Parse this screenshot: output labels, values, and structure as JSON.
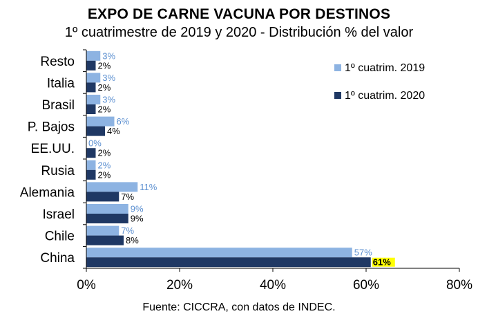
{
  "chart_data": {
    "type": "bar",
    "orientation": "horizontal",
    "title": "EXPO DE CARNE VACUNA POR DESTINOS",
    "subtitle": "1º cuatrimestre de 2019 y 2020 - Distribución % del valor",
    "source": "Fuente: CICCRA, con datos de INDEC.",
    "categories": [
      "Resto",
      "Italia",
      "Brasil",
      "P. Bajos",
      "EE.UU.",
      "Rusia",
      "Alemania",
      "Israel",
      "Chile",
      "China"
    ],
    "series": [
      {
        "name": "1º cuatrim. 2019",
        "values": [
          3,
          3,
          3,
          6,
          0,
          2,
          11,
          9,
          7,
          57
        ],
        "color": "#8db3e2",
        "labels": [
          "3%",
          "3%",
          "3%",
          "6%",
          "0%",
          "2%",
          "11%",
          "9%",
          "7%",
          "57%"
        ]
      },
      {
        "name": "1º cuatrim. 2020",
        "values": [
          2,
          2,
          2,
          4,
          2,
          2,
          7,
          9,
          8,
          61
        ],
        "color": "#1f3864",
        "labels": [
          "2%",
          "2%",
          "2%",
          "4%",
          "2%",
          "2%",
          "7%",
          "9%",
          "8%",
          "61%"
        ]
      }
    ],
    "highlight": {
      "series": 1,
      "category": "China",
      "color": "#ffff00"
    },
    "xlim": [
      0,
      80
    ],
    "xticks": [
      "0%",
      "20%",
      "40%",
      "60%",
      "80%"
    ],
    "grid": false,
    "legend_position": "top-right"
  }
}
